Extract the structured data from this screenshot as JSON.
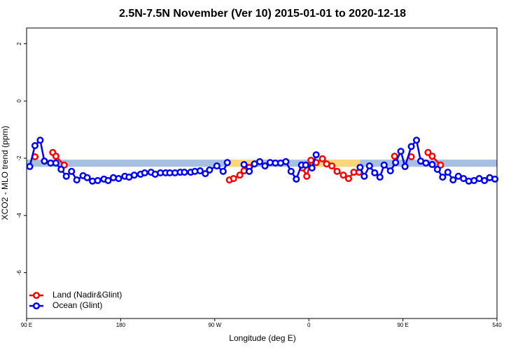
{
  "chart_data": {
    "type": "line",
    "title": "2.5N-7.5N November (Ver 10)   2015-01-01 to 2020-12-18",
    "x_label": "Longitude (deg E)",
    "y_label": "XCO2 - MLO trend (ppm)",
    "xlim": [
      90,
      540
    ],
    "ylim": [
      -7.6,
      2.55
    ],
    "xticks": [
      {
        "value": 90,
        "label": "90 E"
      },
      180,
      {
        "value": 270,
        "label": "90 W"
      },
      {
        "value": 360,
        "label": "0"
      },
      {
        "value": 450,
        "label": "90 E"
      },
      540
    ],
    "yticks": [
      -6,
      -4,
      -2,
      0,
      2
    ],
    "band": {
      "range": [
        -2.3,
        -2.05
      ],
      "color": "#a7bfe0",
      "highlight_color": "#f9d77a",
      "highlights": [
        [
          282,
          309
        ],
        [
          359,
          409
        ]
      ]
    },
    "legend": "bottom-left",
    "series": [
      {
        "name": "Land (Nadir&Glint)",
        "color": "#ff0000",
        "x": [
          98,
          115,
          118,
          126,
          284,
          288,
          294,
          298,
          303,
          354,
          358,
          362,
          367,
          373,
          377,
          382,
          387,
          393,
          398,
          403,
          408,
          442,
          458,
          474,
          478,
          486
        ],
        "values": [
          -1.95,
          -1.8,
          -1.93,
          -2.24,
          -2.76,
          -2.71,
          -2.59,
          -2.44,
          -2.32,
          -2.34,
          -2.63,
          -2.07,
          -2.15,
          -2.02,
          -2.2,
          -2.27,
          -2.46,
          -2.59,
          -2.71,
          -2.49,
          -2.49,
          -1.93,
          -1.95,
          -1.8,
          -1.93,
          -2.24
        ]
      },
      {
        "name": "Ocean (Glint)",
        "color": "#0000ff",
        "x": [
          93,
          98,
          103,
          107,
          113,
          118,
          123,
          128,
          133,
          138,
          144,
          148,
          153,
          158,
          164,
          168,
          173,
          178,
          184,
          188,
          193,
          199,
          203,
          209,
          213,
          218,
          223,
          227,
          232,
          237,
          241,
          247,
          251,
          256,
          261,
          265,
          272,
          278,
          282,
          298,
          303,
          308,
          313,
          318,
          323,
          328,
          333,
          338,
          343,
          348,
          353,
          357,
          363,
          367,
          409,
          413,
          418,
          423,
          428,
          432,
          438,
          443,
          448,
          452,
          458,
          463,
          467,
          472,
          478,
          483,
          488,
          493,
          498,
          503,
          508,
          513,
          518,
          523,
          528,
          533,
          538
        ],
        "values": [
          -2.29,
          -1.56,
          -1.37,
          -2.1,
          -2.17,
          -2.17,
          -2.39,
          -2.63,
          -2.46,
          -2.76,
          -2.61,
          -2.68,
          -2.8,
          -2.78,
          -2.73,
          -2.78,
          -2.68,
          -2.71,
          -2.63,
          -2.66,
          -2.59,
          -2.56,
          -2.51,
          -2.49,
          -2.56,
          -2.51,
          -2.51,
          -2.51,
          -2.51,
          -2.49,
          -2.49,
          -2.49,
          -2.46,
          -2.44,
          -2.54,
          -2.41,
          -2.27,
          -2.46,
          -2.15,
          -2.22,
          -2.46,
          -2.2,
          -2.12,
          -2.27,
          -2.15,
          -2.17,
          -2.17,
          -2.12,
          -2.46,
          -2.73,
          -2.24,
          -2.24,
          -2.34,
          -1.88,
          -2.32,
          -2.63,
          -2.27,
          -2.51,
          -2.66,
          -2.24,
          -2.44,
          -2.15,
          -1.76,
          -2.29,
          -1.59,
          -1.37,
          -2.1,
          -2.17,
          -2.22,
          -2.39,
          -2.66,
          -2.49,
          -2.76,
          -2.63,
          -2.71,
          -2.8,
          -2.78,
          -2.71,
          -2.78,
          -2.68,
          -2.73
        ]
      }
    ]
  }
}
